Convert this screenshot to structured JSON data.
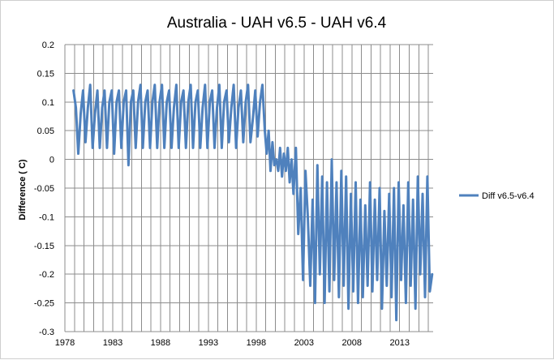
{
  "chart_data": {
    "type": "line",
    "title": "Australia  - UAH v6.5 - UAH v6.4",
    "xlabel": "",
    "ylabel": "Difference ( C)",
    "xlim": [
      1978,
      2016.5
    ],
    "ylim": [
      -0.3,
      0.2
    ],
    "x_ticks": [
      "1978",
      "1983",
      "1988",
      "1993",
      "1998",
      "2003",
      "2008",
      "2013"
    ],
    "y_ticks": [
      "0.2",
      "0.15",
      "0.1",
      "0.05",
      "0",
      "-0.05",
      "-0.1",
      "-0.15",
      "-0.2",
      "-0.25",
      "-0.3"
    ],
    "grid": "vertical and horizontal",
    "legend_position": "right",
    "series": [
      {
        "name": "Diff v6.5-v6.4",
        "color": "#4f81bd",
        "x": [
          1978.9,
          1979.15,
          1979.4,
          1979.65,
          1979.9,
          1980.15,
          1980.4,
          1980.65,
          1980.9,
          1981.15,
          1981.4,
          1981.65,
          1981.9,
          1982.15,
          1982.4,
          1982.65,
          1982.9,
          1983.15,
          1983.4,
          1983.65,
          1983.9,
          1984.15,
          1984.4,
          1984.65,
          1984.9,
          1985.15,
          1985.4,
          1985.65,
          1985.9,
          1986.15,
          1986.4,
          1986.65,
          1986.9,
          1987.15,
          1987.4,
          1987.65,
          1987.9,
          1988.15,
          1988.4,
          1988.65,
          1988.9,
          1989.15,
          1989.4,
          1989.65,
          1989.9,
          1990.15,
          1990.4,
          1990.65,
          1990.9,
          1991.15,
          1991.4,
          1991.65,
          1991.9,
          1992.15,
          1992.4,
          1992.65,
          1992.9,
          1993.15,
          1993.4,
          1993.65,
          1993.9,
          1994.15,
          1994.4,
          1994.65,
          1994.9,
          1995.15,
          1995.4,
          1995.65,
          1995.9,
          1996.15,
          1996.4,
          1996.65,
          1996.9,
          1997.15,
          1997.4,
          1997.65,
          1997.9,
          1998.15,
          1998.4,
          1998.65,
          1998.9,
          1999.1,
          1999.3,
          1999.5,
          1999.7,
          1999.9,
          2000.1,
          2000.3,
          2000.5,
          2000.7,
          2000.9,
          2001.1,
          2001.3,
          2001.5,
          2001.7,
          2001.9,
          2002.15,
          2002.4,
          2002.65,
          2002.9,
          2003.15,
          2003.4,
          2003.65,
          2003.9,
          2004.15,
          2004.4,
          2004.65,
          2004.9,
          2005.15,
          2005.4,
          2005.65,
          2005.9,
          2006.15,
          2006.4,
          2006.65,
          2006.9,
          2007.15,
          2007.4,
          2007.65,
          2007.9,
          2008.15,
          2008.4,
          2008.65,
          2008.9,
          2009.15,
          2009.4,
          2009.65,
          2009.9,
          2010.15,
          2010.4,
          2010.65,
          2010.9,
          2011.15,
          2011.4,
          2011.65,
          2011.9,
          2012.15,
          2012.4,
          2012.65,
          2012.9,
          2013.15,
          2013.4,
          2013.65,
          2013.9,
          2014.15,
          2014.4,
          2014.65,
          2014.9,
          2015.15,
          2015.4,
          2015.65,
          2015.9,
          2016.15,
          2016.4
        ],
        "y": [
          0.12,
          0.09,
          0.01,
          0.08,
          0.12,
          0.03,
          0.09,
          0.13,
          0.02,
          0.08,
          0.12,
          0.02,
          0.09,
          0.12,
          0.02,
          0.1,
          0.12,
          0.01,
          0.1,
          0.12,
          0.02,
          0.1,
          0.12,
          -0.01,
          0.1,
          0.12,
          0.02,
          0.1,
          0.13,
          0.02,
          0.1,
          0.12,
          0.02,
          0.1,
          0.13,
          0.02,
          0.1,
          0.13,
          0.02,
          0.1,
          0.12,
          0.02,
          0.09,
          0.13,
          0.02,
          0.1,
          0.12,
          0.02,
          0.1,
          0.13,
          0.02,
          0.1,
          0.12,
          0.02,
          0.09,
          0.13,
          0.02,
          0.1,
          0.12,
          0.02,
          0.09,
          0.13,
          0.02,
          0.1,
          0.12,
          0.03,
          0.09,
          0.13,
          0.02,
          0.09,
          0.12,
          0.03,
          0.1,
          0.13,
          0.03,
          0.07,
          0.12,
          0.04,
          0.1,
          0.13,
          0.05,
          0.01,
          0.05,
          -0.02,
          0.03,
          -0.01,
          0.0,
          -0.02,
          0.02,
          -0.03,
          0.01,
          -0.02,
          0.02,
          -0.04,
          0.0,
          -0.06,
          0.02,
          -0.13,
          -0.05,
          -0.21,
          -0.02,
          -0.1,
          -0.22,
          -0.07,
          -0.25,
          -0.01,
          -0.2,
          -0.03,
          -0.25,
          -0.04,
          -0.23,
          0.0,
          -0.21,
          -0.04,
          -0.24,
          -0.02,
          -0.22,
          -0.03,
          -0.26,
          -0.06,
          -0.23,
          -0.04,
          -0.25,
          -0.07,
          -0.24,
          -0.08,
          -0.22,
          -0.04,
          -0.23,
          -0.07,
          -0.21,
          -0.05,
          -0.26,
          -0.09,
          -0.22,
          -0.06,
          -0.24,
          -0.05,
          -0.28,
          -0.04,
          -0.21,
          -0.08,
          -0.25,
          -0.04,
          -0.22,
          -0.07,
          -0.26,
          -0.03,
          -0.2,
          -0.06,
          -0.24,
          -0.03,
          -0.23,
          -0.2
        ]
      }
    ]
  }
}
